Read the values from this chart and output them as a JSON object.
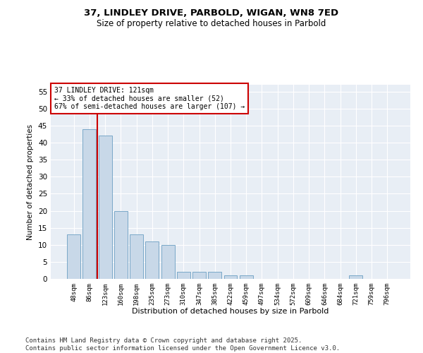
{
  "title_line1": "37, LINDLEY DRIVE, PARBOLD, WIGAN, WN8 7ED",
  "title_line2": "Size of property relative to detached houses in Parbold",
  "xlabel": "Distribution of detached houses by size in Parbold",
  "ylabel": "Number of detached properties",
  "categories": [
    "48sqm",
    "86sqm",
    "123sqm",
    "160sqm",
    "198sqm",
    "235sqm",
    "273sqm",
    "310sqm",
    "347sqm",
    "385sqm",
    "422sqm",
    "459sqm",
    "497sqm",
    "534sqm",
    "572sqm",
    "609sqm",
    "646sqm",
    "684sqm",
    "721sqm",
    "759sqm",
    "796sqm"
  ],
  "values": [
    13,
    44,
    42,
    20,
    13,
    11,
    10,
    2,
    2,
    2,
    1,
    1,
    0,
    0,
    0,
    0,
    0,
    0,
    1,
    0,
    0
  ],
  "bar_color": "#c8d8e8",
  "bar_edgecolor": "#7aa8c8",
  "vline_color": "#cc0000",
  "vline_index": 1.5,
  "annotation_text": "37 LINDLEY DRIVE: 121sqm\n← 33% of detached houses are smaller (52)\n67% of semi-detached houses are larger (107) →",
  "annotation_bbox_edgecolor": "#cc0000",
  "annotation_bbox_facecolor": "white",
  "ylim_max": 57,
  "yticks": [
    0,
    5,
    10,
    15,
    20,
    25,
    30,
    35,
    40,
    45,
    50,
    55
  ],
  "bg_color": "#e8eef5",
  "grid_color": "#ffffff",
  "footer_line1": "Contains HM Land Registry data © Crown copyright and database right 2025.",
  "footer_line2": "Contains public sector information licensed under the Open Government Licence v3.0."
}
